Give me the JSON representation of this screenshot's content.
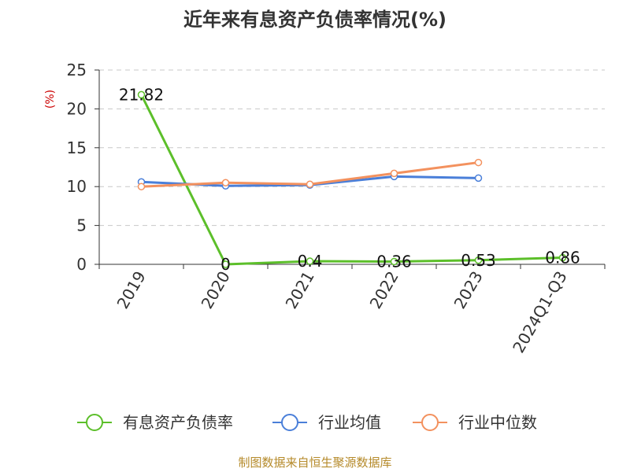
{
  "title": "近年来有息资产负债率情况(%)",
  "source": "制图数据来自恒生聚源数据库",
  "colors": {
    "title": "#333333",
    "axis": "#333333",
    "grid": "#c8c8c8",
    "unit": "#cc0000",
    "source": "#b58a2a"
  },
  "chart_data": {
    "type": "line",
    "title": "近年来有息资产负债率情况(%)",
    "xlabel": "",
    "ylabel": "(%)",
    "categories": [
      "2019",
      "2020",
      "2021",
      "2022",
      "2023",
      "2024Q1-Q3"
    ],
    "ylim": [
      0,
      25
    ],
    "yticks": [
      0,
      5,
      10,
      15,
      20,
      25
    ],
    "grid": true,
    "legend_position": "bottom",
    "series": [
      {
        "name": "有息资产负债率",
        "color": "#5cbf2a",
        "values": [
          21.82,
          0,
          0.4,
          0.36,
          0.53,
          0.86
        ],
        "data_labels": [
          "21.82",
          "0",
          "0.4",
          "0.36",
          "0.53",
          "0.86"
        ]
      },
      {
        "name": "行业均值",
        "color": "#4a7fd9",
        "values": [
          10.6,
          10.1,
          10.2,
          11.3,
          11.1,
          null
        ]
      },
      {
        "name": "行业中位数",
        "color": "#f3915e",
        "values": [
          10.0,
          10.5,
          10.3,
          11.7,
          13.1,
          null
        ]
      }
    ]
  }
}
